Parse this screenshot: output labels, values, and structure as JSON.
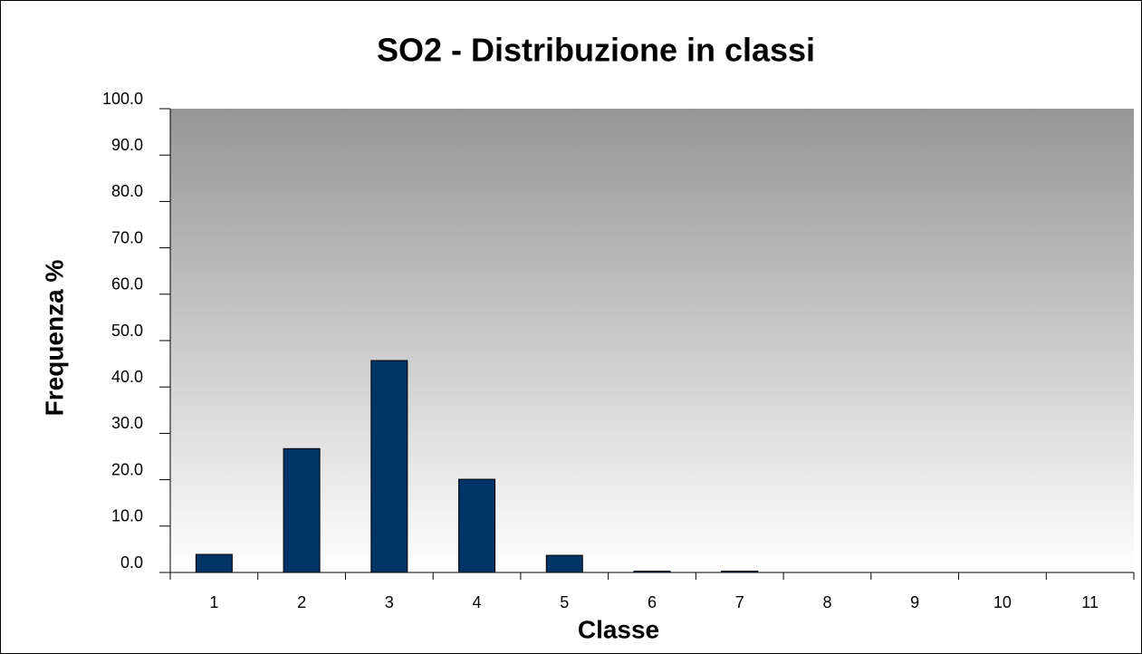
{
  "chart_data": {
    "type": "bar",
    "title": "SO2 - Distribuzione in classi",
    "x_label": "Classe",
    "y_label": "Frequenza %",
    "categories": [
      "1",
      "2",
      "3",
      "4",
      "5",
      "6",
      "7",
      "8",
      "9",
      "10",
      "11"
    ],
    "values": [
      3.9,
      26.7,
      45.7,
      20.1,
      3.7,
      0.3,
      0.3,
      0,
      0,
      0,
      0
    ],
    "color": "#003366",
    "ylim": [
      0,
      100
    ],
    "yticks": [
      {
        "value": 0,
        "label": "0.0"
      },
      {
        "value": 10,
        "label": "10.0"
      },
      {
        "value": 20,
        "label": "20.0"
      },
      {
        "value": 30,
        "label": "30.0"
      },
      {
        "value": 40,
        "label": "40.0"
      },
      {
        "value": 50,
        "label": "50.0"
      },
      {
        "value": 60,
        "label": "60.0"
      },
      {
        "value": 70,
        "label": "70.0"
      },
      {
        "value": 80,
        "label": "80.0"
      },
      {
        "value": 90,
        "label": "90.0"
      },
      {
        "value": 100,
        "label": "100.0"
      }
    ]
  }
}
